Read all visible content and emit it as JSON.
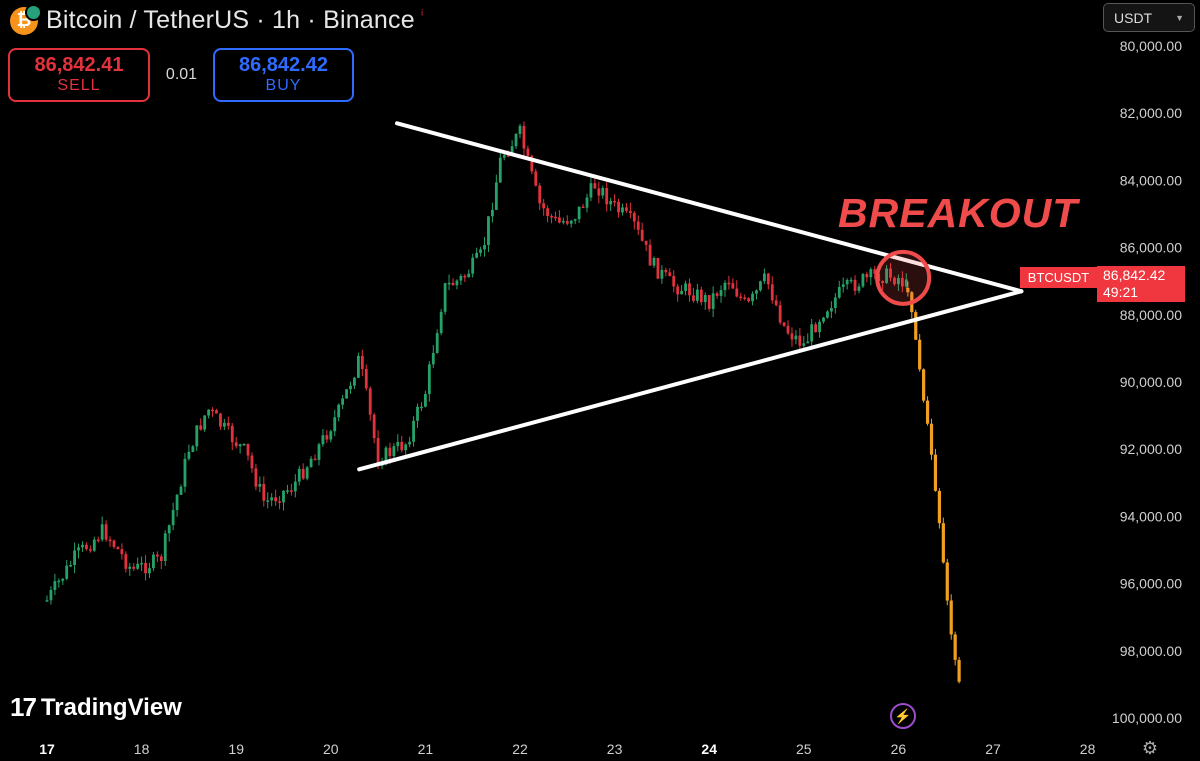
{
  "header": {
    "coin_glyph": "₿",
    "symbol_title": "Bitcoin / TetherUS · 1h · Binance",
    "market_dot": "ⁱ"
  },
  "trade": {
    "sell_price": "86,842.41",
    "sell_label": "SELL",
    "quantity": "0.01",
    "buy_price": "86,842.42",
    "buy_label": "BUY"
  },
  "currency_selector": {
    "value": "USDT",
    "chevron": "▼"
  },
  "annotation": {
    "text": "BREAKOUT",
    "color": "#f04b4b"
  },
  "last_price": {
    "symbol": "BTCUSDT",
    "price": "86,842.42",
    "countdown": "49:21"
  },
  "branding": {
    "logo_mark": "17",
    "name": "TradingView"
  },
  "icons": {
    "bolt": "⚡",
    "settings": "⚙"
  },
  "colors": {
    "up": "#26a269",
    "down": "#e2323d",
    "forecast": "#f0a020",
    "trendline": "#ffffff",
    "background": "#000000"
  },
  "chart_data": {
    "type": "candlestick",
    "y_axis": {
      "ticks": [
        "80,000.00",
        "82,000.00",
        "84,000.00",
        "86,000.00",
        "88,000.00",
        "90,000.00",
        "92,000.00",
        "94,000.00",
        "96,000.00",
        "98,000.00",
        "100,000.00"
      ],
      "range": [
        79600,
        100400
      ],
      "inverted": true
    },
    "x_axis": {
      "ticks": [
        "17",
        "18",
        "19",
        "20",
        "21",
        "22",
        "23",
        "24",
        "25",
        "26",
        "27",
        "28"
      ],
      "bold_ticks": [
        "17",
        "24"
      ]
    },
    "price_path": [
      [
        17.0,
        96500
      ],
      [
        17.3,
        95200
      ],
      [
        17.6,
        94400
      ],
      [
        17.9,
        95600
      ],
      [
        18.2,
        95300
      ],
      [
        18.5,
        92000
      ],
      [
        18.7,
        90800
      ],
      [
        18.9,
        91500
      ],
      [
        19.1,
        92100
      ],
      [
        19.3,
        93600
      ],
      [
        19.6,
        93100
      ],
      [
        19.9,
        91800
      ],
      [
        20.1,
        90800
      ],
      [
        20.3,
        89300
      ],
      [
        20.5,
        92300
      ],
      [
        20.8,
        91800
      ],
      [
        21.0,
        90300
      ],
      [
        21.2,
        87200
      ],
      [
        21.4,
        86900
      ],
      [
        21.6,
        86200
      ],
      [
        21.8,
        83300
      ],
      [
        22.0,
        82600
      ],
      [
        22.2,
        84700
      ],
      [
        22.4,
        85300
      ],
      [
        22.6,
        85000
      ],
      [
        22.8,
        84100
      ],
      [
        23.0,
        84800
      ],
      [
        23.2,
        85300
      ],
      [
        23.4,
        86500
      ],
      [
        23.6,
        87100
      ],
      [
        23.8,
        87300
      ],
      [
        24.0,
        87600
      ],
      [
        24.2,
        86900
      ],
      [
        24.4,
        87800
      ],
      [
        24.6,
        86900
      ],
      [
        24.8,
        88400
      ],
      [
        25.0,
        88900
      ],
      [
        25.2,
        87900
      ],
      [
        25.4,
        87300
      ],
      [
        25.6,
        87000
      ],
      [
        25.8,
        86800
      ],
      [
        26.0,
        86900
      ],
      [
        26.1,
        87200
      ]
    ],
    "forecast_path": [
      [
        26.1,
        87200
      ],
      [
        26.15,
        88000
      ],
      [
        26.2,
        89000
      ],
      [
        26.25,
        90200
      ],
      [
        26.3,
        91200
      ],
      [
        26.35,
        92100
      ],
      [
        26.4,
        93400
      ],
      [
        26.45,
        94600
      ],
      [
        26.5,
        96100
      ],
      [
        26.55,
        97500
      ],
      [
        26.6,
        98300
      ],
      [
        26.65,
        99000
      ]
    ],
    "trendlines": [
      {
        "from": [
          20.7,
          82300
        ],
        "to": [
          27.3,
          87300
        ]
      },
      {
        "from": [
          20.3,
          92600
        ],
        "to": [
          27.3,
          87300
        ]
      }
    ],
    "breakout_marker": {
      "at": [
        26.05,
        86900
      ]
    }
  }
}
